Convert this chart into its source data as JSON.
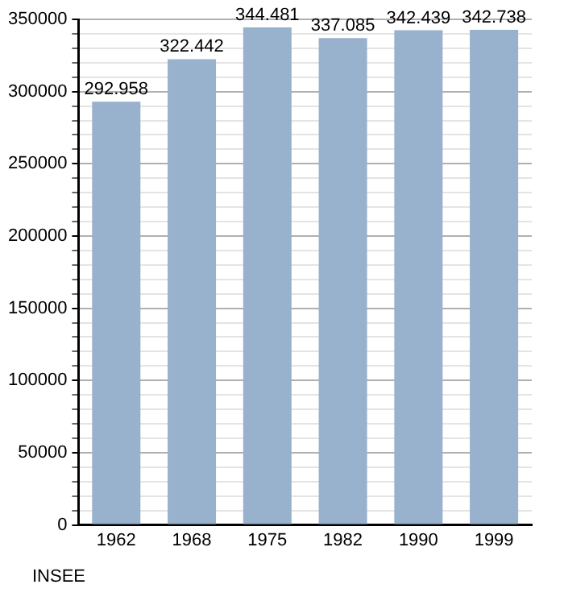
{
  "chart_data": {
    "type": "bar",
    "categories": [
      "1962",
      "1968",
      "1975",
      "1982",
      "1990",
      "1999"
    ],
    "values": [
      292958,
      322442,
      344481,
      337085,
      342439,
      342738
    ],
    "value_labels": [
      "292.958",
      "322.442",
      "344.481",
      "337.085",
      "342.439",
      "342.738"
    ],
    "color": "#98b1cc",
    "ylim": [
      0,
      350000
    ],
    "yticks": [
      0,
      {
        "value": 10000,
        "label": null
      },
      {
        "value": 20000,
        "label": null
      },
      {
        "value": 30000,
        "label": null
      },
      {
        "value": 40000,
        "label": null
      },
      50000,
      {
        "value": 60000,
        "label": null
      },
      {
        "value": 70000,
        "label": null
      },
      {
        "value": 80000,
        "label": null
      },
      {
        "value": 90000,
        "label": null
      },
      100000,
      {
        "value": 110000,
        "label": null
      },
      {
        "value": 120000,
        "label": null
      },
      {
        "value": 130000,
        "label": null
      },
      {
        "value": 140000,
        "label": null
      },
      150000,
      {
        "value": 160000,
        "label": null
      },
      {
        "value": 170000,
        "label": null
      },
      {
        "value": 180000,
        "label": null
      },
      {
        "value": 190000,
        "label": null
      },
      200000,
      {
        "value": 210000,
        "label": null
      },
      {
        "value": 220000,
        "label": null
      },
      {
        "value": 230000,
        "label": null
      },
      {
        "value": 240000,
        "label": null
      },
      250000,
      {
        "value": 260000,
        "label": null
      },
      {
        "value": 270000,
        "label": null
      },
      {
        "value": 280000,
        "label": null
      },
      {
        "value": 290000,
        "label": null
      },
      300000,
      {
        "value": 310000,
        "label": null
      },
      {
        "value": 320000,
        "label": null
      },
      {
        "value": 330000,
        "label": null
      },
      {
        "value": 340000,
        "label": null
      },
      350000
    ],
    "grid": "y",
    "legend": false,
    "annotations": [
      "INSEE"
    ]
  }
}
